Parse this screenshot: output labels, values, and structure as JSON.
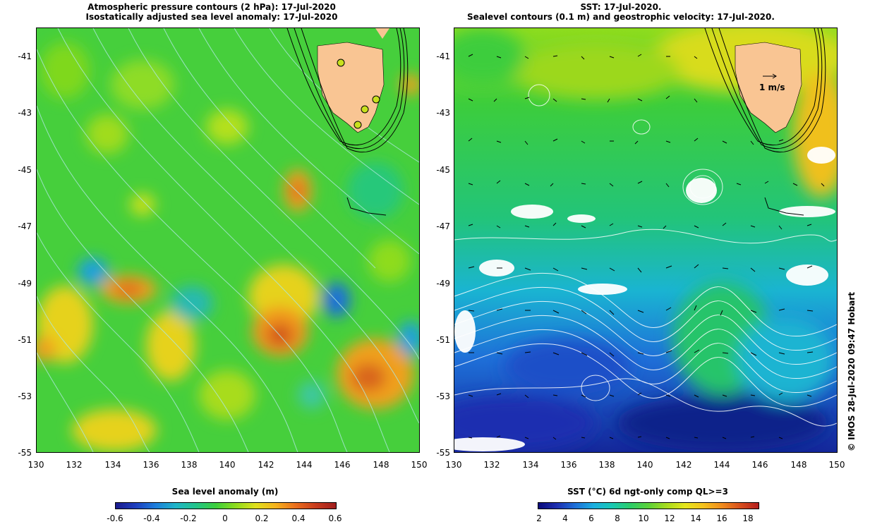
{
  "left_title": {
    "line1": "Atmospheric pressure contours (2 hPa): 17-Jul-2020",
    "line2": "Isostatically adjusted sea level anomaly: 17-Jul-2020"
  },
  "right_title": {
    "line1": "SST: 17-Jul-2020.",
    "line2": "Sealevel contours (0.1 m) and geostrophic velocity: 17-Jul-2020."
  },
  "y_ticks": [
    "-41",
    "-43",
    "-45",
    "-47",
    "-49",
    "-51",
    "-53",
    "-55"
  ],
  "x_ticks": [
    "130",
    "132",
    "134",
    "136",
    "138",
    "140",
    "142",
    "144",
    "146",
    "148",
    "150"
  ],
  "velocity_scale_label": "1 m/s",
  "ssa_colorbar": {
    "title": "Sea level anomaly (m)",
    "ticks": [
      "-0.6",
      "-0.4",
      "-0.2",
      "0",
      "0.2",
      "0.4",
      "0.6"
    ]
  },
  "sst_colorbar": {
    "title": "SST (°C) 6d ngt-only comp QL>=3",
    "ticks": [
      "2",
      "4",
      "6",
      "8",
      "10",
      "12",
      "14",
      "16",
      "18"
    ]
  },
  "credit": "© IMOS 28-Jul-2020 09:47 Hobart",
  "colors": {
    "land": "#f9c593",
    "ssa_green": "#3dcf3d",
    "sst_blue": "#1e3fbf",
    "cloud": "#ffffff"
  }
}
